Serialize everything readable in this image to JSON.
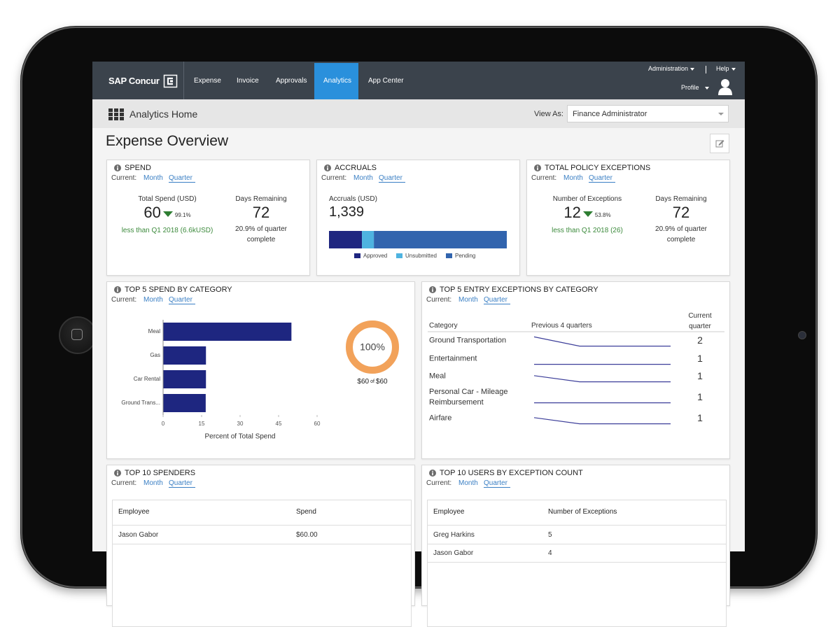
{
  "nav": {
    "brand": "SAP Concur",
    "items": [
      "Expense",
      "Invoice",
      "Approvals",
      "Analytics",
      "App Center"
    ],
    "administration": "Administration",
    "help": "Help",
    "profile": "Profile"
  },
  "subheader": {
    "title": "Analytics Home",
    "view_as_label": "View As:",
    "view_as_value": "Finance Administrator"
  },
  "page_title": "Expense Overview",
  "period": {
    "current_label": "Current:",
    "options": [
      "Month",
      "Quarter"
    ]
  },
  "spend": {
    "title": "SPEND",
    "total_label": "Total Spend (USD)",
    "total": "60",
    "change": "99.1%",
    "comparison": "less than Q1 2018 (6.6kUSD)",
    "days_label": "Days Remaining",
    "days": "72",
    "days_note": "20.9% of quarter complete"
  },
  "accruals": {
    "title": "ACCRUALS",
    "total_label": "Accruals (USD)",
    "total": "1,339",
    "chart": {
      "type": "stacked-bar",
      "xlim": [
        0,
        1339
      ],
      "series": [
        {
          "name": "Approved",
          "color": "#1f2680",
          "values": [
            248
          ]
        },
        {
          "name": "Unsubmitted",
          "color": "#4eb3e0",
          "values": [
            90
          ]
        },
        {
          "name": "Pending",
          "color": "#3164ae",
          "values": [
            1001
          ]
        }
      ]
    }
  },
  "exceptions": {
    "title": "TOTAL POLICY EXCEPTIONS",
    "total_label": "Number of Exceptions",
    "total": "12",
    "change": "53.8%",
    "comparison": "less than Q1 2018 (26)",
    "days_label": "Days Remaining",
    "days": "72",
    "days_note": "20.9% of quarter complete"
  },
  "top5_spend": {
    "title": "TOP 5 SPEND BY CATEGORY",
    "chart": {
      "type": "bar",
      "orientation": "horizontal",
      "categories": [
        "Meal",
        "Gas",
        "Car Rental",
        "Ground Trans..."
      ],
      "values": [
        50,
        16.7,
        16.7,
        16.6
      ],
      "color": "#1e2680",
      "xlim": [
        0,
        60
      ],
      "xticks": [
        0,
        15,
        30,
        45,
        60
      ],
      "xlabel": "Percent of Total Spend"
    },
    "donut": {
      "type": "donut",
      "value": 100,
      "value_label": "100%",
      "color": "#f2a25a",
      "caption": {
        "spent": "$60",
        "joiner": "of",
        "budget": "$60"
      }
    }
  },
  "top5_exceptions": {
    "title": "TOP 5 ENTRY EXCEPTIONS BY CATEGORY",
    "columns": [
      "Category",
      "Previous 4 quarters",
      "Current quarter"
    ],
    "sparkline": {
      "type": "line",
      "color": "#3d3f9a",
      "ylim": [
        0,
        5
      ]
    },
    "rows": [
      {
        "category": "Ground Transportation",
        "previous": [
          4,
          1,
          1,
          1
        ],
        "current": "2"
      },
      {
        "category": "Entertainment",
        "previous": [
          1,
          1,
          1,
          1
        ],
        "current": "1"
      },
      {
        "category": "Meal",
        "previous": [
          3,
          1,
          1,
          1
        ],
        "current": "1"
      },
      {
        "category": "Personal Car - Mileage Reimbursement",
        "previous": [
          1,
          1,
          1,
          1
        ],
        "current": "1"
      },
      {
        "category": "Airfare",
        "previous": [
          3,
          1,
          1,
          1
        ],
        "current": "1"
      }
    ]
  },
  "top10_spenders": {
    "title": "TOP 10 SPENDERS",
    "columns": [
      "Employee",
      "Spend"
    ],
    "rows": [
      [
        "Jason Gabor",
        "$60.00"
      ]
    ]
  },
  "top10_users": {
    "title": "TOP 10 USERS BY EXCEPTION COUNT",
    "columns": [
      "Employee",
      "Number of Exceptions"
    ],
    "rows": [
      [
        "Greg Harkins",
        "5"
      ],
      [
        "Jason Gabor",
        "4"
      ]
    ]
  }
}
